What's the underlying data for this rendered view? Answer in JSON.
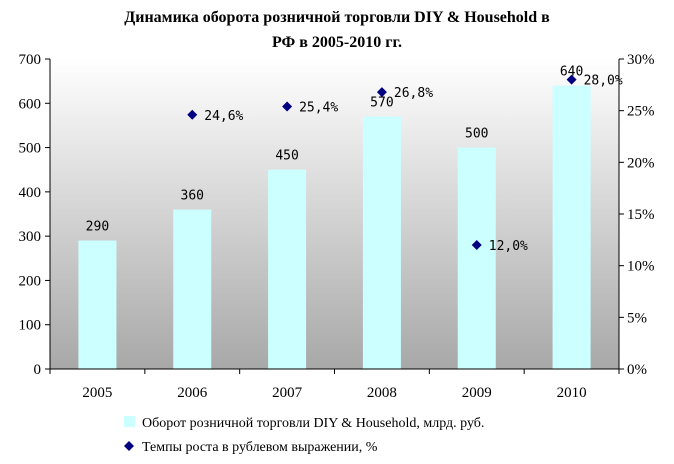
{
  "chart_data": {
    "type": "bar",
    "title_lines": [
      "Динамика оборота розничной торговли DIY & Household в",
      "РФ в 2005-2010 гг."
    ],
    "categories": [
      "2005",
      "2006",
      "2007",
      "2008",
      "2009",
      "2010"
    ],
    "series": [
      {
        "name": "Оборот розничной торговли DIY & Household, млрд. руб.",
        "type": "bar",
        "axis": "left",
        "values": [
          290,
          360,
          450,
          570,
          500,
          640
        ],
        "labels": [
          "290",
          "360",
          "450",
          "570",
          "500",
          "640"
        ],
        "color": "#ccffff"
      },
      {
        "name": "Темпы роста в рублевом выражении, %",
        "type": "scatter",
        "axis": "right",
        "values": [
          null,
          24.6,
          25.4,
          26.8,
          12.0,
          28.0
        ],
        "labels": [
          "",
          "24,6%",
          "25,4%",
          "26,8%",
          "12,0%",
          "28,0%"
        ],
        "color": "#000080"
      }
    ],
    "y_left": {
      "ylim": [
        0,
        700
      ],
      "ticks": [
        0,
        100,
        200,
        300,
        400,
        500,
        600,
        700
      ],
      "tick_labels": [
        "0",
        "100",
        "200",
        "300",
        "400",
        "500",
        "600",
        "700"
      ]
    },
    "y_right": {
      "ylim": [
        0,
        30
      ],
      "ticks": [
        0,
        5,
        10,
        15,
        20,
        25,
        30
      ],
      "tick_labels": [
        "0%",
        "5%",
        "10%",
        "15%",
        "20%",
        "25%",
        "30%"
      ]
    },
    "plot_background": "gradient",
    "grid": false,
    "legend_position": "bottom"
  }
}
